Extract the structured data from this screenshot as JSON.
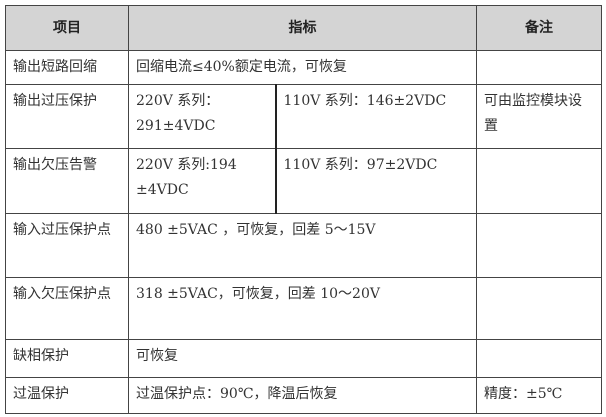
{
  "header": {
    "item": "项目",
    "spec": "指标",
    "note": "备注"
  },
  "rows": [
    {
      "item": "输出短路回缩",
      "spec": "回缩电流≤40%额定电流，可恢复",
      "note": ""
    },
    {
      "item": "输出过压保护",
      "spec_220": "220V 系列：291±4VDC",
      "spec_110": "110V 系列：146±2VDC",
      "note": "可由监控模块设置"
    },
    {
      "item": "输出欠压告警",
      "spec_220": "220V 系列:194 ±4VDC",
      "spec_110": "110V 系列：97±2VDC",
      "note": ""
    },
    {
      "item": "输入过压保护点",
      "spec": "480 ±5VAC ，可恢复，回差 5～15V",
      "note": ""
    },
    {
      "item": "输入欠压保护点",
      "spec": "318 ±5VAC，可恢复，回差 10～20V",
      "note": ""
    },
    {
      "item": "缺相保护",
      "spec": "可恢复",
      "note": ""
    },
    {
      "item": "过温保护",
      "spec": "过温保护点：90℃，降温后恢复",
      "note": "精度：±5℃"
    }
  ]
}
